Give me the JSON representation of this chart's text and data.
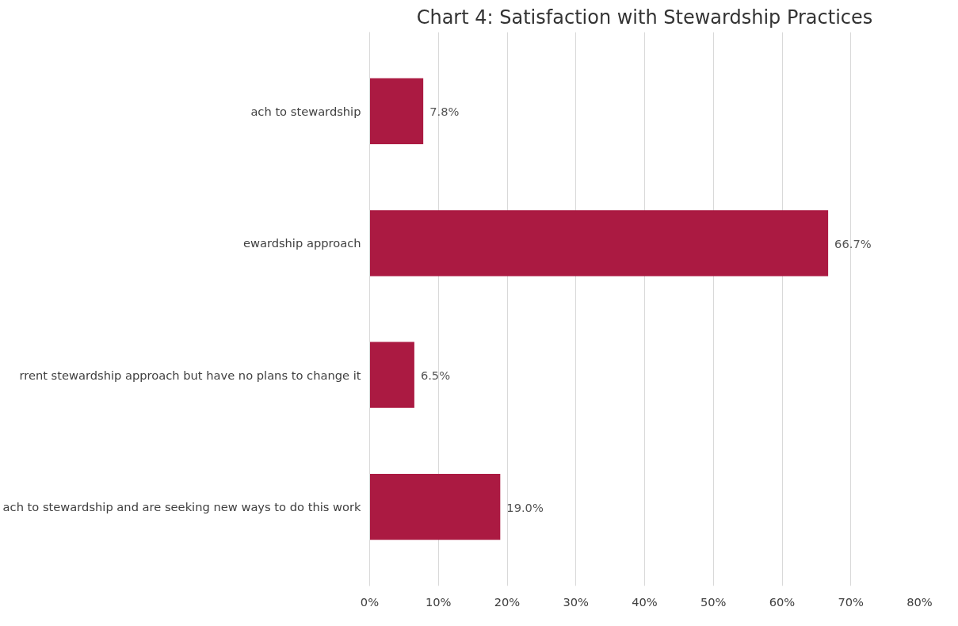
{
  "chart_data": {
    "type": "bar",
    "orientation": "horizontal",
    "title": "Chart 4: Satisfaction with Stewardship Practices",
    "categories": [
      "ach to stewardship",
      "ewardship approach",
      "rrent stewardship approach but have no plans to change it",
      "ach to stewardship and are seeking new ways to do this work"
    ],
    "values": [
      7.8,
      66.7,
      6.5,
      19.0
    ],
    "value_labels": [
      "7.8%",
      "66.7%",
      "6.5%",
      "19.0%"
    ],
    "color": "#ab1a42",
    "xlim": [
      0,
      80
    ],
    "xticks": [
      {
        "value": 0,
        "label": "0%"
      },
      {
        "value": 10,
        "label": "10%"
      },
      {
        "value": 20,
        "label": "20%"
      },
      {
        "value": 30,
        "label": "30%"
      },
      {
        "value": 40,
        "label": "40%"
      },
      {
        "value": 50,
        "label": "50%"
      },
      {
        "value": 60,
        "label": "60%"
      },
      {
        "value": 70,
        "label": "70%"
      },
      {
        "value": 80,
        "label": "80%"
      }
    ],
    "grid": "x"
  }
}
